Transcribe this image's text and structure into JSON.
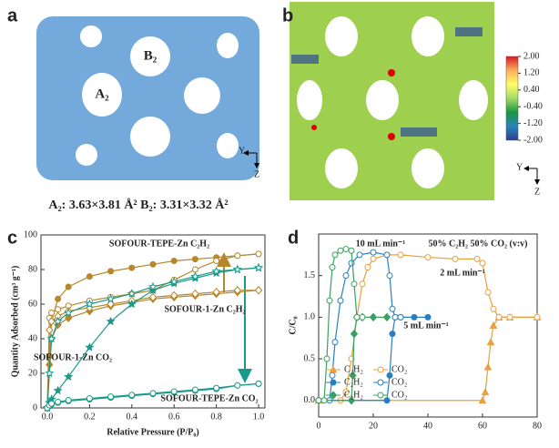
{
  "panel_a": {
    "letter": "a",
    "label_a": "A₂",
    "label_b": "B₂",
    "axis_y": "Y",
    "axis_z": "Z",
    "caption": "A₂: 3.63×3.81 Å²  B₂: 3.31×3.32 Å²"
  },
  "panel_b": {
    "letter": "b",
    "axis_y": "Y",
    "axis_z": "Z",
    "colorbar_colors": [
      "#d7191c",
      "#fdae61",
      "#ffff66",
      "#a6d96a",
      "#1a9641",
      "#2b83ba",
      "#2c3e90"
    ],
    "colorbar_range": [
      -2,
      2
    ],
    "colorbar_ticks": [
      {
        "value": 2,
        "label": "2.00"
      },
      {
        "value": 1.2,
        "label": "1.20"
      },
      {
        "value": 0.4,
        "label": "0.40"
      },
      {
        "value": -0.4,
        "label": "-0.40"
      },
      {
        "value": -1.2,
        "label": "-1.20"
      },
      {
        "value": -2,
        "label": "-2.00"
      }
    ]
  },
  "chart_data": [
    {
      "type": "line",
      "letter": "c",
      "x_label": "Relative Pressure (P/P₀)",
      "y_label": "Quantity Adsorbed (cm³ g⁻¹)",
      "xlim": [
        -0.03,
        1.03
      ],
      "ylim": [
        0,
        100
      ],
      "xticks": [
        {
          "value": 0,
          "label": "0.0"
        },
        0.2,
        0.4,
        0.6,
        0.8,
        {
          "value": 1,
          "label": "1.0"
        }
      ],
      "yticks": [
        0,
        20,
        40,
        60,
        80,
        100
      ],
      "annotations": [
        "SOFOUR-TEPE-Zn C₂H₂",
        "SOFOUR-1-Zn C₂H₂",
        "SOFOUR-1-Zn CO₂",
        "SOFOUR-TEPE-Zn CO₂"
      ],
      "x": [
        0,
        0.01,
        0.02,
        0.05,
        0.1,
        0.2,
        0.3,
        0.4,
        0.5,
        0.6,
        0.7,
        0.8,
        0.9,
        1.0
      ],
      "series": [
        {
          "color": "#b8862b",
          "marker": "circle",
          "filled": true,
          "values": [
            0,
            30,
            50,
            63,
            70,
            76,
            79,
            81,
            83,
            85,
            86,
            87,
            88,
            89
          ]
        },
        {
          "color": "#b8862b",
          "marker": "circle",
          "filled": false,
          "values": [
            0,
            52,
            55,
            57,
            59,
            62,
            64,
            66,
            68,
            74,
            80,
            85,
            88,
            89
          ]
        },
        {
          "color": "#b8862b",
          "marker": "diamond",
          "filled": true,
          "values": [
            0,
            25,
            40,
            48,
            52,
            56,
            59,
            61,
            63,
            64,
            65,
            66,
            67,
            68
          ]
        },
        {
          "color": "#b8862b",
          "marker": "diamond",
          "filled": false,
          "values": [
            0,
            45,
            50,
            53,
            56,
            58,
            60,
            62,
            64,
            65,
            66,
            67,
            68,
            68
          ]
        },
        {
          "color": "#1a9a8a",
          "marker": "star",
          "filled": true,
          "values": [
            0,
            3,
            5,
            10,
            18,
            35,
            50,
            60,
            68,
            72,
            75,
            78,
            80,
            81
          ]
        },
        {
          "color": "#1a9a8a",
          "marker": "star",
          "filled": false,
          "values": [
            0,
            20,
            40,
            50,
            55,
            60,
            63,
            66,
            70,
            73,
            76,
            79,
            80,
            81
          ]
        },
        {
          "color": "#1a9a8a",
          "marker": "circle",
          "filled": true,
          "values": [
            0,
            1,
            2,
            3,
            4,
            5,
            6,
            7,
            8,
            9,
            10,
            11,
            13,
            14
          ]
        },
        {
          "color": "#1a9a8a",
          "marker": "circle",
          "filled": false,
          "values": [
            0,
            1.5,
            2.5,
            3.5,
            4.5,
            5.5,
            6.5,
            7.5,
            8.5,
            9.5,
            10.5,
            11.5,
            13,
            14
          ]
        }
      ]
    },
    {
      "type": "line",
      "letter": "d",
      "y_label": "C/C₀",
      "xlim": [
        0,
        80
      ],
      "ylim": [
        -0.2,
        2.0
      ],
      "xticks": [
        0,
        20,
        40,
        60,
        80
      ],
      "yticks": [
        {
          "value": 0,
          "label": "0.0"
        },
        0.5,
        {
          "value": 1,
          "label": "1.0"
        },
        1.5
      ],
      "annotations": [
        "10 mL min⁻¹",
        "2 mL min⁻¹",
        "5 mL min⁻¹",
        "50% C₂H₂  50% CO₂ (v:v)"
      ],
      "legend": "lower left",
      "series": [
        {
          "name": "C₂H₂",
          "color": "#e8a040",
          "marker": "triangle",
          "filled": true,
          "x": [
            0,
            60,
            61,
            62,
            63,
            64,
            66,
            70,
            80
          ],
          "values": [
            0,
            0,
            0.1,
            0.4,
            0.7,
            0.9,
            1.0,
            1.0,
            1.0
          ]
        },
        {
          "name": "CO₂",
          "color": "#e8a040",
          "marker": "circle",
          "filled": false,
          "x": [
            0,
            8,
            10,
            12,
            14,
            16,
            18,
            20,
            25,
            30,
            40,
            50,
            58,
            60,
            62,
            64,
            66,
            70,
            80
          ],
          "values": [
            0,
            0,
            0.1,
            0.5,
            1.0,
            1.4,
            1.6,
            1.7,
            1.75,
            1.75,
            1.72,
            1.7,
            1.7,
            1.65,
            1.3,
            1.1,
            1.0,
            1.0,
            1.0
          ]
        },
        {
          "name": "C₂H₂",
          "color": "#2a7fc0",
          "marker": "circle",
          "filled": true,
          "x": [
            0,
            25,
            26,
            27,
            28,
            30,
            35,
            40
          ],
          "values": [
            0,
            0,
            0.3,
            0.8,
            1.0,
            1.0,
            1.0,
            1.0
          ]
        },
        {
          "name": "CO₂",
          "color": "#2a7fc0",
          "marker": "circle",
          "filled": false,
          "x": [
            0,
            4,
            5,
            6,
            8,
            10,
            12,
            15,
            20,
            25,
            26,
            27,
            28,
            30
          ],
          "values": [
            0,
            0,
            0.3,
            0.7,
            1.2,
            1.5,
            1.65,
            1.75,
            1.78,
            1.75,
            1.5,
            1.1,
            1.0,
            1.0
          ]
        },
        {
          "name": "C₂H₂",
          "color": "#3aa060",
          "marker": "diamond",
          "filled": true,
          "x": [
            0,
            12,
            12.5,
            13,
            14,
            16,
            20,
            25
          ],
          "values": [
            0,
            0,
            0.3,
            0.8,
            1.0,
            1.0,
            1.0,
            1.0
          ]
        },
        {
          "name": "CO₂",
          "color": "#3aa060",
          "marker": "circle",
          "filled": false,
          "x": [
            0,
            2,
            3,
            4,
            5,
            6,
            8,
            10,
            12,
            13,
            14,
            16
          ],
          "values": [
            0,
            0,
            0.5,
            1.2,
            1.6,
            1.75,
            1.8,
            1.82,
            1.8,
            1.4,
            1.0,
            1.0
          ]
        }
      ]
    }
  ]
}
